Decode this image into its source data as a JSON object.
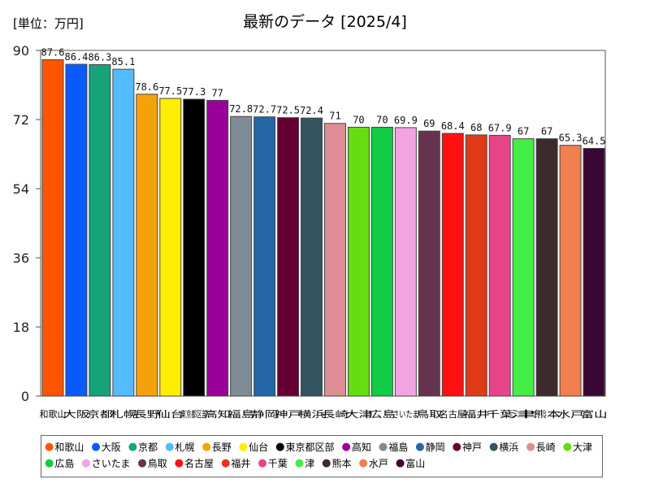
{
  "unit_label": "[単位：万円]",
  "title": "最新のデータ [2025/4]",
  "chart_data": {
    "type": "bar",
    "title": "最新のデータ [2025/4]",
    "ylabel": "[単位：万円]",
    "xlabel": "",
    "ylim": [
      0,
      90
    ],
    "yticks": [
      0,
      18,
      36,
      54,
      72,
      90
    ],
    "grid": false,
    "legend_position": "bottom",
    "categories": [
      "和歌山",
      "大阪",
      "京都",
      "札幌",
      "長野",
      "仙台",
      "東京都区部",
      "高知",
      "福島",
      "静岡",
      "神戸",
      "横浜",
      "長崎",
      "大津",
      "広島",
      "さいたま",
      "鳥取",
      "名古屋",
      "福井",
      "千葉",
      "津",
      "熊本",
      "水戸",
      "富山"
    ],
    "tick_labels": [
      "和歌山",
      "大阪",
      "京都",
      "札幌",
      "長野",
      "仙台",
      "東京都区部",
      "高知",
      "福島",
      "静岡",
      "神戸",
      "横浜",
      "長崎",
      "大津",
      "広島",
      "さいたま",
      "鳥取",
      "名古屋",
      "福井",
      "千葉",
      "津",
      "熊本",
      "水戸",
      "富山"
    ],
    "values": [
      87.6,
      86.4,
      86.3,
      85.1,
      78.6,
      77.5,
      77.3,
      77,
      72.8,
      72.7,
      72.5,
      72.4,
      71,
      70,
      70,
      69.9,
      69,
      68.4,
      68,
      67.9,
      67,
      67,
      65.3,
      64.5
    ],
    "data_labels": [
      "87.6",
      "86.4",
      "86.3",
      "85.1",
      "78.6",
      "77.5",
      "77.3",
      "77",
      "72.8",
      "72.7",
      "72.5",
      "72.4",
      "71",
      "70",
      "70",
      "69.9",
      "69",
      "68.4",
      "68",
      "67.9",
      "67",
      "67",
      "65.3",
      "64.5"
    ],
    "colors": [
      "#ff5500",
      "#0a5bff",
      "#16a37a",
      "#55bbff",
      "#f4a20a",
      "#ffee00",
      "#000000",
      "#990099",
      "#7f8c96",
      "#2466a6",
      "#660033",
      "#34545f",
      "#dd8d93",
      "#66dd11",
      "#11cc44",
      "#f2a4e2",
      "#66334f",
      "#ff1111",
      "#de3a18",
      "#e8448a",
      "#44ee44",
      "#3e2a2c",
      "#f08050",
      "#3a0633"
    ]
  }
}
